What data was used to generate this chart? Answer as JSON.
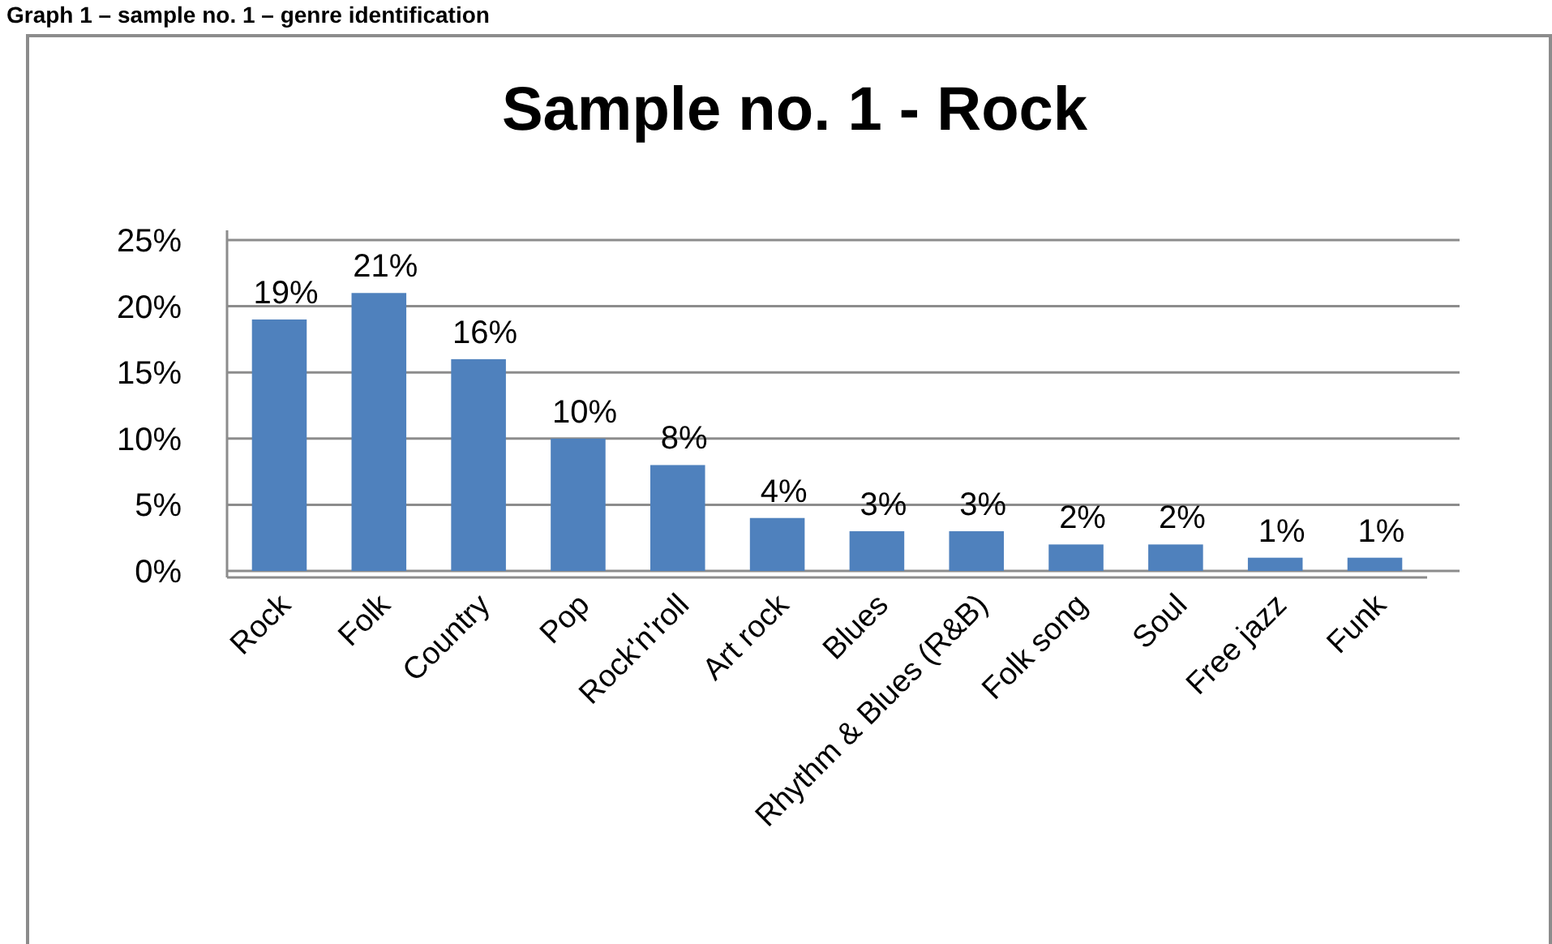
{
  "chart_data": {
    "type": "bar",
    "title": "Sample no. 1 - Rock",
    "annotations": [
      "Graph 1 – sample no. 1 – genre identification"
    ],
    "categories": [
      "Rock",
      "Folk",
      "Country",
      "Pop",
      "Rock'n'roll",
      "Art rock",
      "Blues",
      "Rhythm & Blues (R&B)",
      "Folk song",
      "Soul",
      "Free jazz",
      "Funk"
    ],
    "values": [
      19,
      21,
      16,
      10,
      8,
      4,
      3,
      3,
      2,
      2,
      1,
      1
    ],
    "color": "#4f81bd",
    "value_labels": [
      "19%",
      "21%",
      "16%",
      "10%",
      "8%",
      "4%",
      "3%",
      "3%",
      "2%",
      "2%",
      "1%",
      "1%"
    ],
    "ylim": [
      0,
      25
    ],
    "yticks": [
      {
        "value": 0,
        "label": "0%"
      },
      {
        "value": 5,
        "label": "5%"
      },
      {
        "value": 10,
        "label": "10%"
      },
      {
        "value": 15,
        "label": "15%"
      },
      {
        "value": 20,
        "label": "20%"
      },
      {
        "value": 25,
        "label": "25%"
      }
    ],
    "grid": "y"
  }
}
